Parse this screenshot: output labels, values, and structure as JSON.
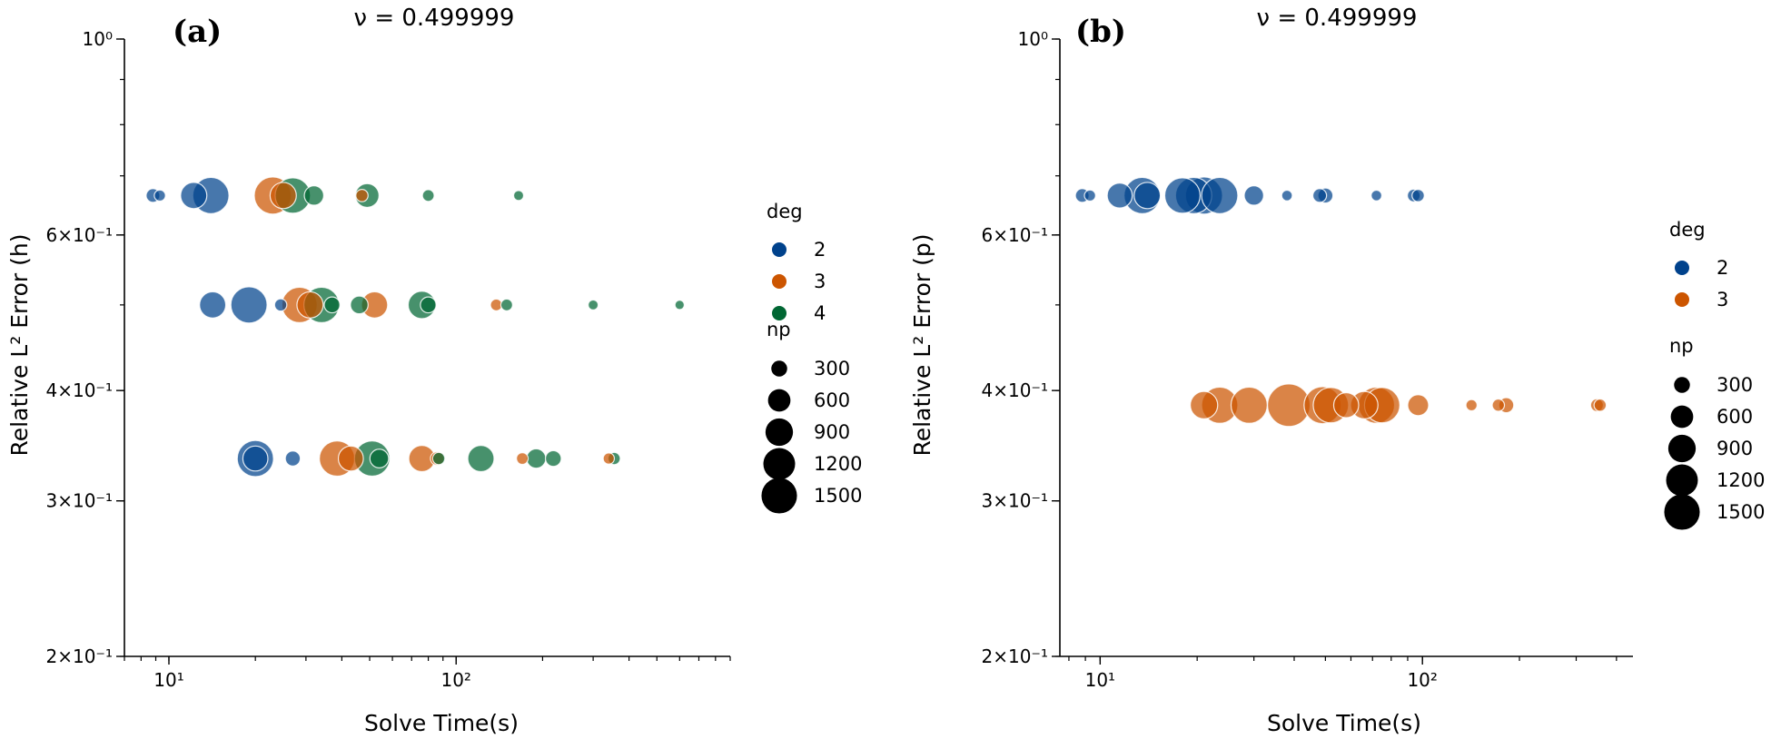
{
  "chart_data": [
    {
      "type": "scatter",
      "panel_tag": "(a)",
      "title": "ν = 0.499999",
      "xlabel": "Solve Time(s)",
      "ylabel": "Relative L² Error (h)",
      "xscale": "log",
      "yscale": "log",
      "xlim": [
        7,
        900
      ],
      "ylim": [
        0.2,
        1.0
      ],
      "y_ticks": [
        {
          "value": 1.0,
          "label": "10⁰"
        },
        {
          "value": 0.6,
          "label": "6×10⁻¹"
        },
        {
          "value": 0.4,
          "label": "4×10⁻¹"
        },
        {
          "value": 0.3,
          "label": "3×10⁻¹"
        },
        {
          "value": 0.2,
          "label": "2×10⁻¹"
        }
      ],
      "x_ticks": [
        {
          "value": 10,
          "label": "10¹"
        },
        {
          "value": 100,
          "label": "10²"
        }
      ],
      "legend": {
        "hue_title": "deg",
        "hue": [
          {
            "label": "2",
            "color": "#00428c"
          },
          {
            "label": "3",
            "color": "#cc5500"
          },
          {
            "label": "4",
            "color": "#006633"
          }
        ],
        "size_title": "np",
        "sizes": [
          {
            "label": "300",
            "value": 300
          },
          {
            "label": "600",
            "value": 600
          },
          {
            "label": "900",
            "value": 900
          },
          {
            "label": "1200",
            "value": 1200
          },
          {
            "label": "1500",
            "value": 1500
          }
        ]
      },
      "series": [
        {
          "name": "2",
          "color": "#00428c",
          "points": [
            {
              "x": 8.8,
              "y": 0.665,
              "np": 150
            },
            {
              "x": 9.3,
              "y": 0.665,
              "np": 100
            },
            {
              "x": 12.2,
              "y": 0.665,
              "np": 550
            },
            {
              "x": 14.0,
              "y": 0.665,
              "np": 1050
            },
            {
              "x": 14.2,
              "y": 0.5,
              "np": 550
            },
            {
              "x": 19.0,
              "y": 0.5,
              "np": 1050
            },
            {
              "x": 20.0,
              "y": 0.335,
              "np": 1050
            },
            {
              "x": 20.0,
              "y": 0.335,
              "np": 500
            },
            {
              "x": 24.5,
              "y": 0.5,
              "np": 120
            },
            {
              "x": 27.0,
              "y": 0.335,
              "np": 180
            }
          ]
        },
        {
          "name": "3",
          "color": "#cc5500",
          "points": [
            {
              "x": 23.0,
              "y": 0.665,
              "np": 1100
            },
            {
              "x": 25.0,
              "y": 0.665,
              "np": 550
            },
            {
              "x": 28.5,
              "y": 0.5,
              "np": 1000
            },
            {
              "x": 31.0,
              "y": 0.5,
              "np": 550
            },
            {
              "x": 38.5,
              "y": 0.335,
              "np": 1000
            },
            {
              "x": 43.0,
              "y": 0.335,
              "np": 500
            },
            {
              "x": 52.0,
              "y": 0.5,
              "np": 550
            },
            {
              "x": 47.0,
              "y": 0.665,
              "np": 120
            },
            {
              "x": 76.0,
              "y": 0.335,
              "np": 550
            },
            {
              "x": 86.0,
              "y": 0.335,
              "np": 150
            },
            {
              "x": 138.0,
              "y": 0.5,
              "np": 110
            },
            {
              "x": 170.0,
              "y": 0.335,
              "np": 110
            },
            {
              "x": 340.0,
              "y": 0.335,
              "np": 100
            }
          ]
        },
        {
          "name": "4",
          "color": "#006633",
          "points": [
            {
              "x": 27.0,
              "y": 0.665,
              "np": 1000
            },
            {
              "x": 32.0,
              "y": 0.665,
              "np": 300
            },
            {
              "x": 34.0,
              "y": 0.5,
              "np": 1000
            },
            {
              "x": 37.0,
              "y": 0.5,
              "np": 200
            },
            {
              "x": 46.0,
              "y": 0.5,
              "np": 250
            },
            {
              "x": 49.0,
              "y": 0.665,
              "np": 450
            },
            {
              "x": 51.0,
              "y": 0.335,
              "np": 1000
            },
            {
              "x": 54.0,
              "y": 0.335,
              "np": 280
            },
            {
              "x": 76.0,
              "y": 0.5,
              "np": 600
            },
            {
              "x": 80.0,
              "y": 0.5,
              "np": 200
            },
            {
              "x": 80.0,
              "y": 0.665,
              "np": 110
            },
            {
              "x": 87.0,
              "y": 0.335,
              "np": 120
            },
            {
              "x": 122.0,
              "y": 0.335,
              "np": 550
            },
            {
              "x": 150.0,
              "y": 0.5,
              "np": 110
            },
            {
              "x": 165.0,
              "y": 0.665,
              "np": 80
            },
            {
              "x": 190.0,
              "y": 0.335,
              "np": 300
            },
            {
              "x": 218.0,
              "y": 0.335,
              "np": 200
            },
            {
              "x": 300.0,
              "y": 0.5,
              "np": 80
            },
            {
              "x": 355.0,
              "y": 0.335,
              "np": 120
            },
            {
              "x": 600.0,
              "y": 0.5,
              "np": 70
            }
          ]
        }
      ]
    },
    {
      "type": "scatter",
      "panel_tag": "(b)",
      "title": "ν = 0.499999",
      "xlabel": "Solve Time(s)",
      "ylabel": "Relative L² Error (p)",
      "xscale": "log",
      "yscale": "log",
      "xlim": [
        7.5,
        450
      ],
      "ylim": [
        0.2,
        1.0
      ],
      "y_ticks": [
        {
          "value": 1.0,
          "label": "10⁰"
        },
        {
          "value": 0.6,
          "label": "6×10⁻¹"
        },
        {
          "value": 0.4,
          "label": "4×10⁻¹"
        },
        {
          "value": 0.3,
          "label": "3×10⁻¹"
        },
        {
          "value": 0.2,
          "label": "2×10⁻¹"
        }
      ],
      "x_ticks": [
        {
          "value": 10,
          "label": "10¹"
        },
        {
          "value": 100,
          "label": "10²"
        }
      ],
      "legend": {
        "hue_title": "deg",
        "hue": [
          {
            "label": "2",
            "color": "#00428c"
          },
          {
            "label": "3",
            "color": "#cc5500"
          }
        ],
        "size_title": "np",
        "sizes": [
          {
            "label": "300",
            "value": 300
          },
          {
            "label": "600",
            "value": 600
          },
          {
            "label": "900",
            "value": 900
          },
          {
            "label": "1200",
            "value": 1200
          },
          {
            "label": "1500",
            "value": 1500
          }
        ]
      },
      "series": [
        {
          "name": "2",
          "color": "#00428c",
          "points": [
            {
              "x": 8.8,
              "y": 0.665,
              "np": 150
            },
            {
              "x": 9.3,
              "y": 0.665,
              "np": 100
            },
            {
              "x": 11.5,
              "y": 0.665,
              "np": 500
            },
            {
              "x": 13.5,
              "y": 0.665,
              "np": 1050
            },
            {
              "x": 14.0,
              "y": 0.665,
              "np": 550
            },
            {
              "x": 18.0,
              "y": 0.665,
              "np": 1000
            },
            {
              "x": 19.5,
              "y": 0.665,
              "np": 1050
            },
            {
              "x": 21.0,
              "y": 0.665,
              "np": 1100
            },
            {
              "x": 23.5,
              "y": 0.665,
              "np": 1050
            },
            {
              "x": 30.0,
              "y": 0.665,
              "np": 300
            },
            {
              "x": 38.0,
              "y": 0.665,
              "np": 90
            },
            {
              "x": 48.0,
              "y": 0.665,
              "np": 150
            },
            {
              "x": 50.0,
              "y": 0.665,
              "np": 180
            },
            {
              "x": 72.0,
              "y": 0.665,
              "np": 90
            },
            {
              "x": 94.0,
              "y": 0.665,
              "np": 130
            },
            {
              "x": 97.0,
              "y": 0.665,
              "np": 120
            }
          ]
        },
        {
          "name": "3",
          "color": "#cc5500",
          "points": [
            {
              "x": 21.0,
              "y": 0.385,
              "np": 600
            },
            {
              "x": 23.5,
              "y": 0.385,
              "np": 1050
            },
            {
              "x": 29.0,
              "y": 0.385,
              "np": 1050
            },
            {
              "x": 38.5,
              "y": 0.385,
              "np": 1450
            },
            {
              "x": 49.0,
              "y": 0.385,
              "np": 1100
            },
            {
              "x": 52.0,
              "y": 0.385,
              "np": 1000
            },
            {
              "x": 58.0,
              "y": 0.385,
              "np": 500
            },
            {
              "x": 66.0,
              "y": 0.385,
              "np": 600
            },
            {
              "x": 72.0,
              "y": 0.385,
              "np": 1050
            },
            {
              "x": 75.0,
              "y": 0.385,
              "np": 1000
            },
            {
              "x": 97.0,
              "y": 0.385,
              "np": 350
            },
            {
              "x": 142.0,
              "y": 0.385,
              "np": 100
            },
            {
              "x": 172.0,
              "y": 0.385,
              "np": 120
            },
            {
              "x": 182.0,
              "y": 0.385,
              "np": 180
            },
            {
              "x": 348.0,
              "y": 0.385,
              "np": 130
            },
            {
              "x": 356.0,
              "y": 0.385,
              "np": 120
            }
          ]
        }
      ]
    }
  ]
}
